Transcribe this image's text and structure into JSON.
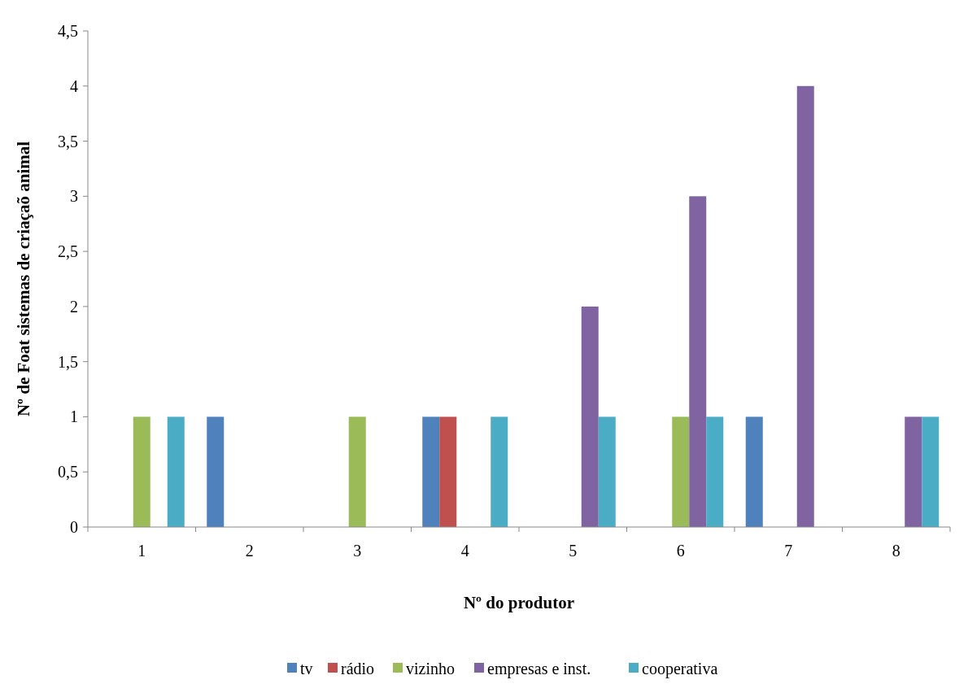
{
  "chart_data": {
    "type": "bar",
    "xlabel": "Nº do produtor",
    "ylabel": "Nº de Foat sistemas de criaçaõ animal",
    "categories": [
      "1",
      "2",
      "3",
      "4",
      "5",
      "6",
      "7",
      "8"
    ],
    "series": [
      {
        "name": "tv",
        "color": "#4f81bd",
        "values": [
          0,
          1,
          0,
          1,
          0,
          0,
          1,
          0
        ]
      },
      {
        "name": "rádio",
        "color": "#c0504d",
        "values": [
          0,
          0,
          0,
          1,
          0,
          0,
          0,
          0
        ]
      },
      {
        "name": "vizinho",
        "color": "#9bbb59",
        "values": [
          1,
          0,
          1,
          0,
          0,
          1,
          0,
          0
        ]
      },
      {
        "name": "empresas e inst.",
        "color": "#8064a2",
        "values": [
          0,
          0,
          0,
          0,
          2,
          3,
          4,
          1
        ]
      },
      {
        "name": "cooperativa",
        "color": "#4bacc6",
        "values": [
          1,
          0,
          0,
          1,
          1,
          1,
          0,
          1
        ]
      }
    ],
    "ylim": [
      0,
      4.5
    ],
    "yticks": [
      0,
      {
        "value": 0.5,
        "label": "0,5"
      },
      1,
      {
        "value": 1.5,
        "label": "1,5"
      },
      2,
      {
        "value": 2.5,
        "label": "2,5"
      },
      3,
      {
        "value": 3.5,
        "label": "3,5"
      },
      4,
      {
        "value": 4.5,
        "label": "4,5"
      }
    ],
    "grid": false,
    "legend": "bottom"
  }
}
